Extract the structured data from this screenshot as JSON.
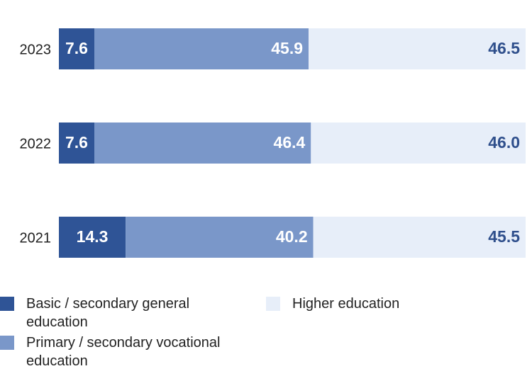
{
  "chart_data": {
    "type": "stacked-bar-horizontal",
    "categories": [
      "2023",
      "2022",
      "2021"
    ],
    "xlim": [
      0,
      100
    ],
    "series": [
      {
        "name": "Basic / secondary general education",
        "color": "#2f5496",
        "values": [
          7.6,
          7.6,
          14.3
        ]
      },
      {
        "name": "Primary / secondary vocational education",
        "color": "#7a97c9",
        "values": [
          45.9,
          46.4,
          40.2
        ]
      },
      {
        "name": "Higher education",
        "color": "#e7eef9",
        "values": [
          46.5,
          46.0,
          45.5
        ],
        "value_labels": [
          "46.5",
          "46.0",
          "45.5"
        ]
      }
    ]
  }
}
